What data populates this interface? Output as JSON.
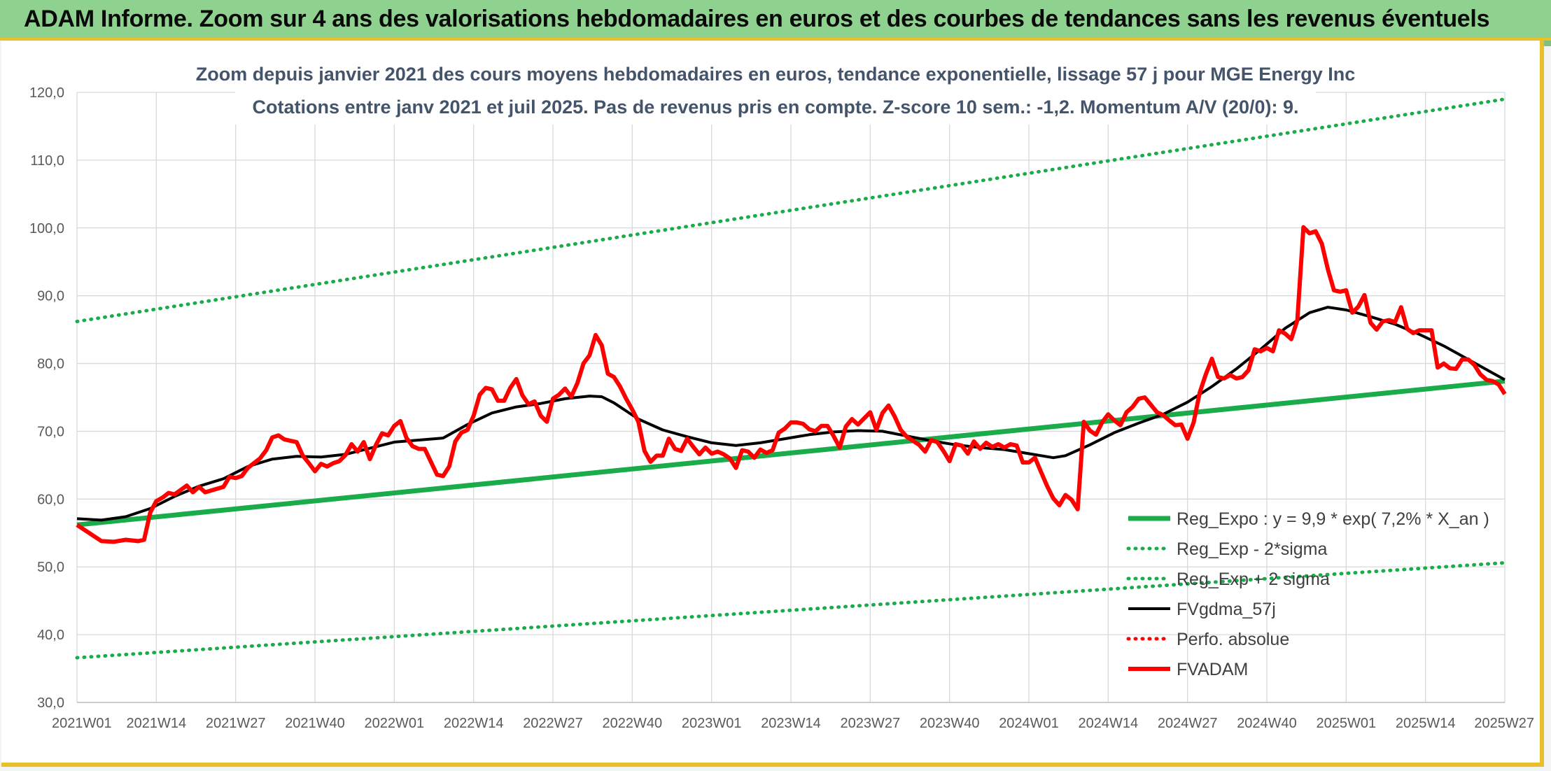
{
  "banner": {
    "title": "ADAM Informe. Zoom sur 4 ans des valorisations hebdomadaires en euros et des courbes de tendances sans les revenus éventuels"
  },
  "colors": {
    "banner_bg": "#8fd18f",
    "frame_accent": "#e8c02a",
    "reg_expo": "#1aab4b",
    "fvgdma": "#000000",
    "perfo": "#ff0000",
    "fvadam": "#ff0000",
    "title_text": "#44546a"
  },
  "chart_data": {
    "type": "line",
    "title_lines": [
      "Zoom depuis janvier 2021 des cours moyens hebdomadaires en euros, tendance exponentielle, lissage 57 j pour MGE Energy Inc",
      "Cotations entre janv 2021 et juil 2025. Pas de revenus pris en compte. Z-score 10 sem.: -1,2. Momentum A/V (20/0): 9."
    ],
    "x_unit": "week index from 2021W01",
    "x_ticks": [
      "2021W01",
      "2021W14",
      "2021W27",
      "2021W40",
      "2022W01",
      "2022W14",
      "2022W27",
      "2022W40",
      "2023W01",
      "2023W14",
      "2023W27",
      "2023W40",
      "2024W01",
      "2024W14",
      "2024W27",
      "2024W40",
      "2025W01",
      "2025W14",
      "2025W27"
    ],
    "x_tick_weeks": [
      0,
      13,
      26,
      39,
      52,
      65,
      78,
      91,
      104,
      117,
      130,
      143,
      156,
      169,
      182,
      195,
      208,
      221,
      234
    ],
    "y_ticks": [
      "30,0",
      "40,0",
      "50,0",
      "60,0",
      "70,0",
      "80,0",
      "90,0",
      "100,0",
      "110,0",
      "120,0"
    ],
    "ylim": [
      30,
      120
    ],
    "xlim": [
      0,
      234
    ],
    "grid": true,
    "legend_position": "bottom-right",
    "series": [
      {
        "name": "Reg_Expo : y = 9,9 * exp( 7,2% *  X_an )",
        "style": "solid-thick",
        "color": "#1aab4b",
        "points": [
          [
            0,
            56.2
          ],
          [
            234,
            77.4
          ]
        ]
      },
      {
        "name": "Reg_Exp - 2*sigma",
        "style": "dotted",
        "color": "#1aab4b",
        "points": [
          [
            0,
            36.6
          ],
          [
            234,
            50.6
          ]
        ]
      },
      {
        "name": "Reg_Exp + 2 sigma",
        "style": "dotted",
        "color": "#1aab4b",
        "points": [
          [
            0,
            86.2
          ],
          [
            234,
            119.0
          ]
        ]
      },
      {
        "name": "FVgdma_57j",
        "style": "solid",
        "color": "#000000",
        "points": [
          [
            0,
            57.1
          ],
          [
            4,
            56.9
          ],
          [
            8,
            57.4
          ],
          [
            12,
            58.6
          ],
          [
            16,
            60.4
          ],
          [
            20,
            61.9
          ],
          [
            24,
            63.0
          ],
          [
            28,
            64.8
          ],
          [
            32,
            65.9
          ],
          [
            36,
            66.3
          ],
          [
            40,
            66.2
          ],
          [
            44,
            66.6
          ],
          [
            48,
            67.5
          ],
          [
            52,
            68.4
          ],
          [
            56,
            68.7
          ],
          [
            60,
            69.0
          ],
          [
            64,
            71.0
          ],
          [
            68,
            72.7
          ],
          [
            72,
            73.6
          ],
          [
            76,
            74.1
          ],
          [
            80,
            74.8
          ],
          [
            84,
            75.2
          ],
          [
            86,
            75.1
          ],
          [
            88,
            74.2
          ],
          [
            92,
            71.8
          ],
          [
            96,
            70.2
          ],
          [
            100,
            69.2
          ],
          [
            104,
            68.3
          ],
          [
            108,
            67.9
          ],
          [
            112,
            68.3
          ],
          [
            116,
            68.9
          ],
          [
            120,
            69.5
          ],
          [
            124,
            69.9
          ],
          [
            128,
            70.1
          ],
          [
            132,
            70.0
          ],
          [
            136,
            69.3
          ],
          [
            140,
            68.6
          ],
          [
            144,
            68.0
          ],
          [
            148,
            67.6
          ],
          [
            152,
            67.3
          ],
          [
            156,
            66.7
          ],
          [
            160,
            66.1
          ],
          [
            162,
            66.4
          ],
          [
            166,
            68.0
          ],
          [
            170,
            69.8
          ],
          [
            174,
            71.2
          ],
          [
            178,
            72.5
          ],
          [
            182,
            74.3
          ],
          [
            186,
            76.6
          ],
          [
            190,
            79.2
          ],
          [
            194,
            82.1
          ],
          [
            198,
            85.2
          ],
          [
            202,
            87.5
          ],
          [
            205,
            88.3
          ],
          [
            208,
            87.9
          ],
          [
            212,
            86.9
          ],
          [
            216,
            85.8
          ],
          [
            220,
            84.3
          ],
          [
            224,
            82.6
          ],
          [
            228,
            80.6
          ],
          [
            232,
            78.6
          ],
          [
            234,
            77.6
          ]
        ]
      },
      {
        "name": "Perfo. absolue",
        "style": "dotted",
        "color": "#ff0000",
        "points": []
      },
      {
        "name": "FVADAM",
        "style": "solid-thick",
        "color": "#ff0000",
        "points": [
          [
            0,
            56.2
          ],
          [
            2,
            55.0
          ],
          [
            4,
            53.8
          ],
          [
            6,
            53.7
          ],
          [
            8,
            54.0
          ],
          [
            10,
            53.8
          ],
          [
            11,
            54.0
          ],
          [
            12,
            58.0
          ],
          [
            13,
            59.7
          ],
          [
            14,
            60.2
          ],
          [
            15,
            60.9
          ],
          [
            16,
            60.7
          ],
          [
            18,
            62.0
          ],
          [
            19,
            61.0
          ],
          [
            20,
            61.8
          ],
          [
            21,
            61.0
          ],
          [
            24,
            61.8
          ],
          [
            25,
            63.3
          ],
          [
            26,
            63.1
          ],
          [
            27,
            63.4
          ],
          [
            28,
            64.6
          ],
          [
            30,
            66.0
          ],
          [
            31,
            67.2
          ],
          [
            32,
            69.1
          ],
          [
            33,
            69.4
          ],
          [
            34,
            68.8
          ],
          [
            36,
            68.4
          ],
          [
            37,
            66.4
          ],
          [
            38,
            65.3
          ],
          [
            39,
            64.1
          ],
          [
            40,
            65.2
          ],
          [
            41,
            64.8
          ],
          [
            42,
            65.3
          ],
          [
            43,
            65.6
          ],
          [
            44,
            66.5
          ],
          [
            45,
            68.1
          ],
          [
            46,
            67.0
          ],
          [
            47,
            68.4
          ],
          [
            48,
            65.9
          ],
          [
            49,
            68.0
          ],
          [
            50,
            69.7
          ],
          [
            51,
            69.4
          ],
          [
            52,
            70.8
          ],
          [
            53,
            71.5
          ],
          [
            54,
            69.0
          ],
          [
            55,
            67.8
          ],
          [
            56,
            67.4
          ],
          [
            57,
            67.4
          ],
          [
            58,
            65.5
          ],
          [
            59,
            63.6
          ],
          [
            60,
            63.4
          ],
          [
            61,
            64.8
          ],
          [
            62,
            68.5
          ],
          [
            63,
            69.8
          ],
          [
            64,
            70.2
          ],
          [
            65,
            72.3
          ],
          [
            66,
            75.4
          ],
          [
            67,
            76.4
          ],
          [
            68,
            76.2
          ],
          [
            69,
            74.5
          ],
          [
            70,
            74.5
          ],
          [
            71,
            76.4
          ],
          [
            72,
            77.7
          ],
          [
            73,
            75.3
          ],
          [
            74,
            74.0
          ],
          [
            75,
            74.4
          ],
          [
            76,
            72.3
          ],
          [
            77,
            71.4
          ],
          [
            78,
            74.8
          ],
          [
            79,
            75.4
          ],
          [
            80,
            76.3
          ],
          [
            81,
            75.1
          ],
          [
            82,
            77.1
          ],
          [
            83,
            80.0
          ],
          [
            84,
            81.2
          ],
          [
            85,
            84.2
          ],
          [
            86,
            82.7
          ],
          [
            87,
            78.5
          ],
          [
            88,
            78.0
          ],
          [
            89,
            76.6
          ],
          [
            90,
            74.8
          ],
          [
            91,
            73.2
          ],
          [
            92,
            71.4
          ],
          [
            93,
            67.1
          ],
          [
            94,
            65.5
          ],
          [
            95,
            66.4
          ],
          [
            96,
            66.4
          ],
          [
            97,
            68.9
          ],
          [
            98,
            67.4
          ],
          [
            99,
            67.1
          ],
          [
            100,
            68.9
          ],
          [
            101,
            67.7
          ],
          [
            102,
            66.6
          ],
          [
            103,
            67.6
          ],
          [
            104,
            66.7
          ],
          [
            105,
            67.0
          ],
          [
            106,
            66.6
          ],
          [
            107,
            66.0
          ],
          [
            108,
            64.6
          ],
          [
            109,
            67.2
          ],
          [
            110,
            67.0
          ],
          [
            111,
            66.1
          ],
          [
            112,
            67.3
          ],
          [
            113,
            66.8
          ],
          [
            114,
            67.2
          ],
          [
            115,
            69.8
          ],
          [
            116,
            70.4
          ],
          [
            117,
            71.3
          ],
          [
            118,
            71.3
          ],
          [
            119,
            71.1
          ],
          [
            120,
            70.3
          ],
          [
            121,
            70.0
          ],
          [
            122,
            70.8
          ],
          [
            123,
            70.8
          ],
          [
            124,
            69.3
          ],
          [
            125,
            67.6
          ],
          [
            126,
            70.7
          ],
          [
            127,
            71.8
          ],
          [
            128,
            71.0
          ],
          [
            129,
            71.9
          ],
          [
            130,
            72.8
          ],
          [
            131,
            70.2
          ],
          [
            132,
            72.7
          ],
          [
            133,
            73.8
          ],
          [
            134,
            72.2
          ],
          [
            135,
            70.2
          ],
          [
            136,
            69.2
          ],
          [
            137,
            68.6
          ],
          [
            138,
            68.0
          ],
          [
            139,
            67.0
          ],
          [
            140,
            68.7
          ],
          [
            141,
            68.4
          ],
          [
            142,
            67.1
          ],
          [
            143,
            65.6
          ],
          [
            144,
            68.1
          ],
          [
            145,
            67.9
          ],
          [
            146,
            66.7
          ],
          [
            147,
            68.5
          ],
          [
            148,
            67.4
          ],
          [
            149,
            68.3
          ],
          [
            150,
            67.7
          ],
          [
            151,
            68.1
          ],
          [
            152,
            67.6
          ],
          [
            153,
            68.1
          ],
          [
            154,
            67.9
          ],
          [
            155,
            65.4
          ],
          [
            156,
            65.4
          ],
          [
            157,
            66.1
          ],
          [
            158,
            64.0
          ],
          [
            159,
            61.9
          ],
          [
            160,
            60.1
          ],
          [
            161,
            59.1
          ],
          [
            162,
            60.6
          ],
          [
            163,
            59.9
          ],
          [
            164,
            58.5
          ],
          [
            165,
            71.4
          ],
          [
            166,
            70.1
          ],
          [
            167,
            69.5
          ],
          [
            168,
            71.3
          ],
          [
            169,
            72.5
          ],
          [
            170,
            71.6
          ],
          [
            171,
            70.9
          ],
          [
            172,
            72.8
          ],
          [
            173,
            73.6
          ],
          [
            174,
            74.8
          ],
          [
            175,
            75.0
          ],
          [
            176,
            73.9
          ],
          [
            177,
            72.8
          ],
          [
            178,
            72.4
          ],
          [
            179,
            71.6
          ],
          [
            180,
            70.9
          ],
          [
            181,
            71.0
          ],
          [
            182,
            68.9
          ],
          [
            183,
            71.3
          ],
          [
            184,
            75.7
          ],
          [
            185,
            78.4
          ],
          [
            186,
            80.7
          ],
          [
            187,
            78.0
          ],
          [
            188,
            77.8
          ],
          [
            189,
            78.3
          ],
          [
            190,
            77.8
          ],
          [
            191,
            78.0
          ],
          [
            192,
            79.0
          ],
          [
            193,
            82.1
          ],
          [
            194,
            81.8
          ],
          [
            195,
            82.3
          ],
          [
            196,
            81.8
          ],
          [
            197,
            84.9
          ],
          [
            198,
            84.4
          ],
          [
            199,
            83.6
          ],
          [
            200,
            86.4
          ],
          [
            201,
            100.1
          ],
          [
            202,
            99.2
          ],
          [
            203,
            99.5
          ],
          [
            204,
            97.7
          ],
          [
            205,
            93.9
          ],
          [
            206,
            90.8
          ],
          [
            207,
            90.6
          ],
          [
            208,
            90.8
          ],
          [
            209,
            87.5
          ],
          [
            210,
            88.4
          ],
          [
            211,
            90.1
          ],
          [
            212,
            86.0
          ],
          [
            213,
            85.0
          ],
          [
            214,
            86.2
          ],
          [
            215,
            86.4
          ],
          [
            216,
            86.1
          ],
          [
            217,
            88.3
          ],
          [
            218,
            85.1
          ],
          [
            219,
            84.5
          ],
          [
            220,
            84.9
          ],
          [
            221,
            84.9
          ],
          [
            222,
            84.9
          ],
          [
            223,
            79.4
          ],
          [
            224,
            80.0
          ],
          [
            225,
            79.3
          ],
          [
            226,
            79.2
          ],
          [
            227,
            80.6
          ],
          [
            228,
            80.6
          ],
          [
            229,
            79.8
          ],
          [
            230,
            78.4
          ],
          [
            231,
            77.6
          ],
          [
            232,
            77.4
          ],
          [
            233,
            76.9
          ],
          [
            234,
            75.5
          ]
        ]
      }
    ]
  }
}
